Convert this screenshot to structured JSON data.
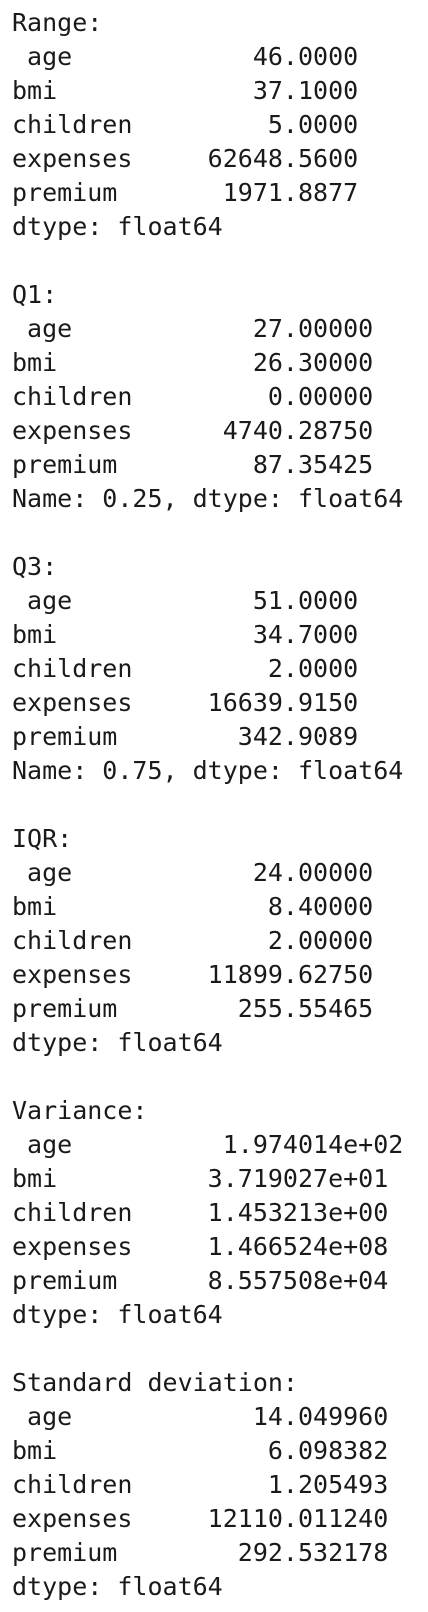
{
  "output": {
    "lines": [
      "Range:",
      " age            46.0000",
      "bmi             37.1000",
      "children         5.0000",
      "expenses     62648.5600",
      "premium       1971.8877",
      "dtype: float64",
      "",
      "Q1:",
      " age            27.00000",
      "bmi             26.30000",
      "children         0.00000",
      "expenses      4740.28750",
      "premium         87.35425",
      "Name: 0.25, dtype: float64",
      "",
      "Q3:",
      " age            51.0000",
      "bmi             34.7000",
      "children         2.0000",
      "expenses     16639.9150",
      "premium        342.9089",
      "Name: 0.75, dtype: float64",
      "",
      "IQR:",
      " age            24.00000",
      "bmi              8.40000",
      "children         2.00000",
      "expenses     11899.62750",
      "premium        255.55465",
      "dtype: float64",
      "",
      "Variance:",
      " age          1.974014e+02",
      "bmi          3.719027e+01",
      "children     1.453213e+00",
      "expenses     1.466524e+08",
      "premium      8.557508e+04",
      "dtype: float64",
      "",
      "Standard deviation:",
      " age            14.049960",
      "bmi              6.098382",
      "children         1.205493",
      "expenses     12110.011240",
      "premium        292.532178",
      "dtype: float64"
    ]
  }
}
